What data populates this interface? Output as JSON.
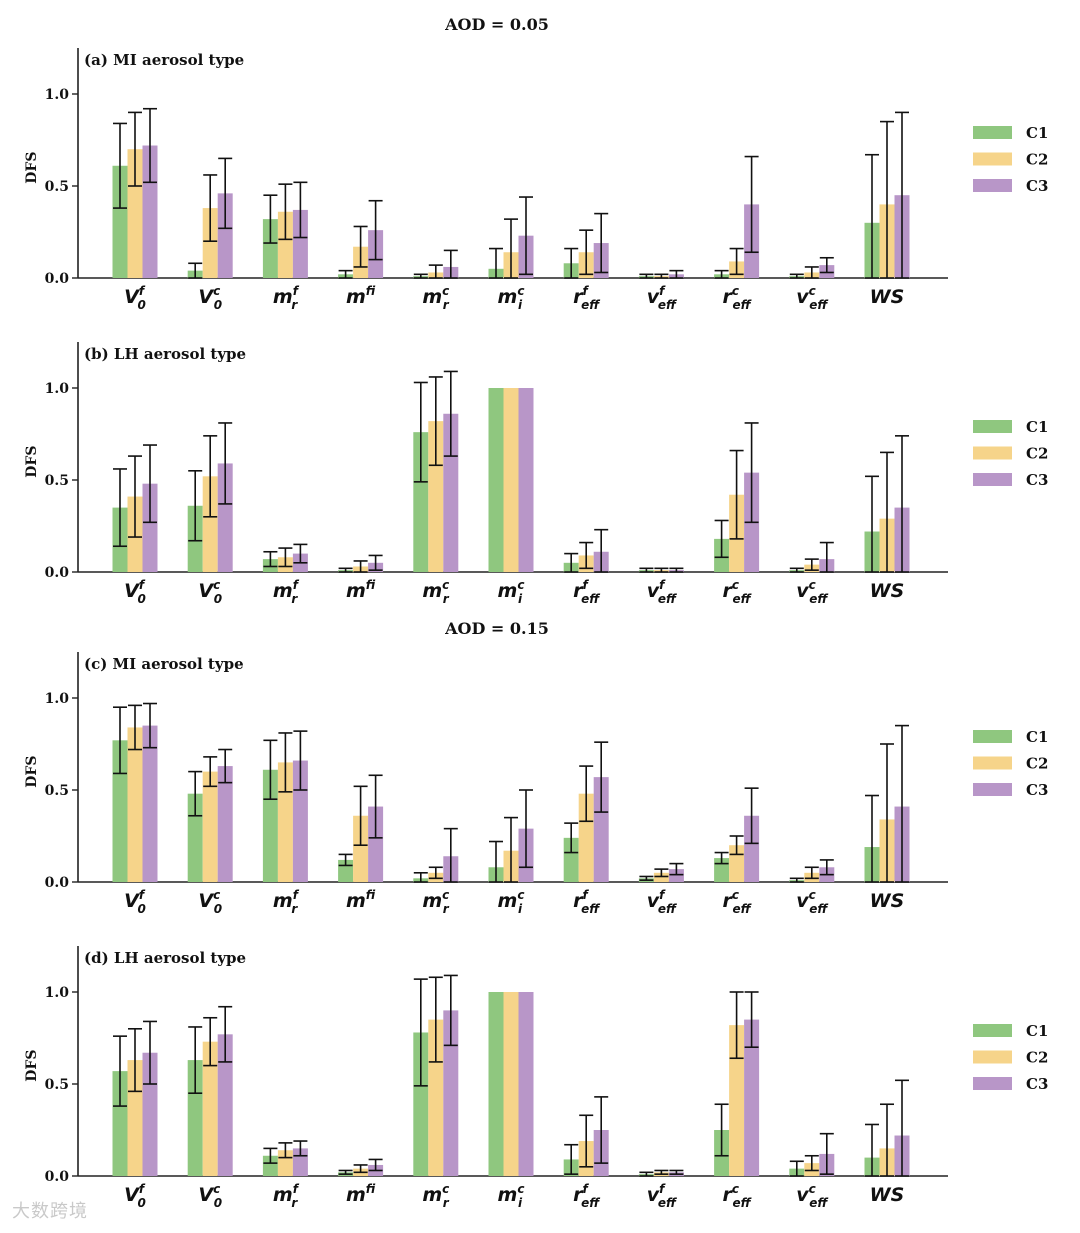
{
  "figure": {
    "group_titles": [
      "AOD = 0.05",
      "AOD = 0.15"
    ],
    "watermark": "大数跨境",
    "colors": {
      "C1": "#8fc77f",
      "C2": "#f6d48a",
      "C3": "#b896c8"
    }
  },
  "chart_data": [
    {
      "type": "bar",
      "title": "(a) MI aerosol type",
      "group_title": "AOD = 0.05",
      "ylabel": "DFS",
      "ylim": [
        0,
        1.25
      ],
      "yticks": [
        "0.0",
        "0.5",
        "1.0"
      ],
      "grid": false,
      "legend": "right",
      "categories": [
        {
          "base": "V",
          "sup": "f",
          "sub": "0"
        },
        {
          "base": "V",
          "sup": "c",
          "sub": "0"
        },
        {
          "base": "m",
          "sup": "f",
          "sub": "r"
        },
        {
          "base": "m",
          "sup": "f",
          "sub": "i"
        },
        {
          "base": "m",
          "sup": "c",
          "sub": "r"
        },
        {
          "base": "m",
          "sup": "c",
          "sub": "i"
        },
        {
          "base": "r",
          "sup": "f",
          "sub": "eff"
        },
        {
          "base": "v",
          "sup": "f",
          "sub": "eff"
        },
        {
          "base": "r",
          "sup": "c",
          "sub": "eff"
        },
        {
          "base": "v",
          "sup": "c",
          "sub": "eff"
        },
        {
          "base": "WS",
          "sup": "",
          "sub": ""
        }
      ],
      "series": [
        {
          "name": "C1",
          "values": [
            0.61,
            0.04,
            0.32,
            0.02,
            0.01,
            0.05,
            0.08,
            0.01,
            0.02,
            0.01,
            0.3
          ],
          "err": [
            0.23,
            0.04,
            0.13,
            0.02,
            0.01,
            0.11,
            0.08,
            0.01,
            0.02,
            0.01,
            0.37
          ]
        },
        {
          "name": "C2",
          "values": [
            0.7,
            0.38,
            0.36,
            0.17,
            0.03,
            0.14,
            0.14,
            0.01,
            0.09,
            0.03,
            0.4
          ],
          "err": [
            0.2,
            0.18,
            0.15,
            0.11,
            0.04,
            0.18,
            0.12,
            0.01,
            0.07,
            0.03,
            0.45
          ]
        },
        {
          "name": "C3",
          "values": [
            0.72,
            0.46,
            0.37,
            0.26,
            0.06,
            0.23,
            0.19,
            0.02,
            0.4,
            0.07,
            0.45
          ],
          "err": [
            0.2,
            0.19,
            0.15,
            0.16,
            0.09,
            0.21,
            0.16,
            0.02,
            0.26,
            0.04,
            0.45
          ]
        }
      ]
    },
    {
      "type": "bar",
      "title": "(b) LH aerosol type",
      "group_title": "AOD = 0.05",
      "ylabel": "DFS",
      "ylim": [
        0,
        1.25
      ],
      "yticks": [
        "0.0",
        "0.5",
        "1.0"
      ],
      "grid": false,
      "legend": "right",
      "categories": [
        {
          "base": "V",
          "sup": "f",
          "sub": "0"
        },
        {
          "base": "V",
          "sup": "c",
          "sub": "0"
        },
        {
          "base": "m",
          "sup": "f",
          "sub": "r"
        },
        {
          "base": "m",
          "sup": "f",
          "sub": "i"
        },
        {
          "base": "m",
          "sup": "c",
          "sub": "r"
        },
        {
          "base": "m",
          "sup": "c",
          "sub": "i"
        },
        {
          "base": "r",
          "sup": "f",
          "sub": "eff"
        },
        {
          "base": "v",
          "sup": "f",
          "sub": "eff"
        },
        {
          "base": "r",
          "sup": "c",
          "sub": "eff"
        },
        {
          "base": "v",
          "sup": "c",
          "sub": "eff"
        },
        {
          "base": "WS",
          "sup": "",
          "sub": ""
        }
      ],
      "series": [
        {
          "name": "C1",
          "values": [
            0.35,
            0.36,
            0.07,
            0.01,
            0.76,
            1.0,
            0.05,
            0.01,
            0.18,
            0.01,
            0.22
          ],
          "err": [
            0.21,
            0.19,
            0.04,
            0.01,
            0.27,
            0.0,
            0.05,
            0.01,
            0.1,
            0.01,
            0.3
          ]
        },
        {
          "name": "C2",
          "values": [
            0.41,
            0.52,
            0.08,
            0.03,
            0.82,
            1.0,
            0.09,
            0.01,
            0.42,
            0.04,
            0.29
          ],
          "err": [
            0.22,
            0.22,
            0.05,
            0.03,
            0.24,
            0.0,
            0.07,
            0.01,
            0.24,
            0.03,
            0.36
          ]
        },
        {
          "name": "C3",
          "values": [
            0.48,
            0.59,
            0.1,
            0.05,
            0.86,
            1.0,
            0.11,
            0.01,
            0.54,
            0.07,
            0.35
          ],
          "err": [
            0.21,
            0.22,
            0.05,
            0.04,
            0.23,
            0.0,
            0.12,
            0.01,
            0.27,
            0.09,
            0.39
          ]
        }
      ]
    },
    {
      "type": "bar",
      "title": "(c) MI aerosol type",
      "group_title": "AOD = 0.15",
      "ylabel": "DFS",
      "ylim": [
        0,
        1.25
      ],
      "yticks": [
        "0.0",
        "0.5",
        "1.0"
      ],
      "grid": false,
      "legend": "right",
      "categories": [
        {
          "base": "V",
          "sup": "f",
          "sub": "0"
        },
        {
          "base": "V",
          "sup": "c",
          "sub": "0"
        },
        {
          "base": "m",
          "sup": "f",
          "sub": "r"
        },
        {
          "base": "m",
          "sup": "f",
          "sub": "i"
        },
        {
          "base": "m",
          "sup": "c",
          "sub": "r"
        },
        {
          "base": "m",
          "sup": "c",
          "sub": "i"
        },
        {
          "base": "r",
          "sup": "f",
          "sub": "eff"
        },
        {
          "base": "v",
          "sup": "f",
          "sub": "eff"
        },
        {
          "base": "r",
          "sup": "c",
          "sub": "eff"
        },
        {
          "base": "v",
          "sup": "c",
          "sub": "eff"
        },
        {
          "base": "WS",
          "sup": "",
          "sub": ""
        }
      ],
      "series": [
        {
          "name": "C1",
          "values": [
            0.77,
            0.48,
            0.61,
            0.12,
            0.02,
            0.08,
            0.24,
            0.02,
            0.13,
            0.01,
            0.19
          ],
          "err": [
            0.18,
            0.12,
            0.16,
            0.03,
            0.03,
            0.14,
            0.08,
            0.01,
            0.03,
            0.01,
            0.28
          ]
        },
        {
          "name": "C2",
          "values": [
            0.84,
            0.6,
            0.65,
            0.36,
            0.05,
            0.17,
            0.48,
            0.05,
            0.2,
            0.05,
            0.34
          ],
          "err": [
            0.12,
            0.08,
            0.16,
            0.16,
            0.03,
            0.18,
            0.15,
            0.02,
            0.05,
            0.03,
            0.41
          ]
        },
        {
          "name": "C3",
          "values": [
            0.85,
            0.63,
            0.66,
            0.41,
            0.14,
            0.29,
            0.57,
            0.07,
            0.36,
            0.08,
            0.41
          ],
          "err": [
            0.12,
            0.09,
            0.16,
            0.17,
            0.15,
            0.21,
            0.19,
            0.03,
            0.15,
            0.04,
            0.44
          ]
        }
      ]
    },
    {
      "type": "bar",
      "title": "(d) LH aerosol type",
      "group_title": "AOD = 0.15",
      "ylabel": "DFS",
      "ylim": [
        0,
        1.25
      ],
      "yticks": [
        "0.0",
        "0.5",
        "1.0"
      ],
      "grid": false,
      "legend": "right",
      "categories": [
        {
          "base": "V",
          "sup": "f",
          "sub": "0"
        },
        {
          "base": "V",
          "sup": "c",
          "sub": "0"
        },
        {
          "base": "m",
          "sup": "f",
          "sub": "r"
        },
        {
          "base": "m",
          "sup": "f",
          "sub": "i"
        },
        {
          "base": "m",
          "sup": "c",
          "sub": "r"
        },
        {
          "base": "m",
          "sup": "c",
          "sub": "i"
        },
        {
          "base": "r",
          "sup": "f",
          "sub": "eff"
        },
        {
          "base": "v",
          "sup": "f",
          "sub": "eff"
        },
        {
          "base": "r",
          "sup": "c",
          "sub": "eff"
        },
        {
          "base": "v",
          "sup": "c",
          "sub": "eff"
        },
        {
          "base": "WS",
          "sup": "",
          "sub": ""
        }
      ],
      "series": [
        {
          "name": "C1",
          "values": [
            0.57,
            0.63,
            0.11,
            0.02,
            0.78,
            1.0,
            0.09,
            0.01,
            0.25,
            0.04,
            0.1
          ],
          "err": [
            0.19,
            0.18,
            0.04,
            0.01,
            0.29,
            0.0,
            0.08,
            0.01,
            0.14,
            0.04,
            0.18
          ]
        },
        {
          "name": "C2",
          "values": [
            0.63,
            0.73,
            0.14,
            0.04,
            0.85,
            1.0,
            0.19,
            0.02,
            0.82,
            0.07,
            0.15
          ],
          "err": [
            0.17,
            0.13,
            0.04,
            0.02,
            0.23,
            0.0,
            0.14,
            0.01,
            0.18,
            0.04,
            0.24
          ]
        },
        {
          "name": "C3",
          "values": [
            0.67,
            0.77,
            0.15,
            0.06,
            0.9,
            1.0,
            0.25,
            0.02,
            0.85,
            0.12,
            0.22
          ],
          "err": [
            0.17,
            0.15,
            0.04,
            0.03,
            0.19,
            0.0,
            0.18,
            0.01,
            0.15,
            0.11,
            0.3
          ]
        }
      ]
    }
  ]
}
